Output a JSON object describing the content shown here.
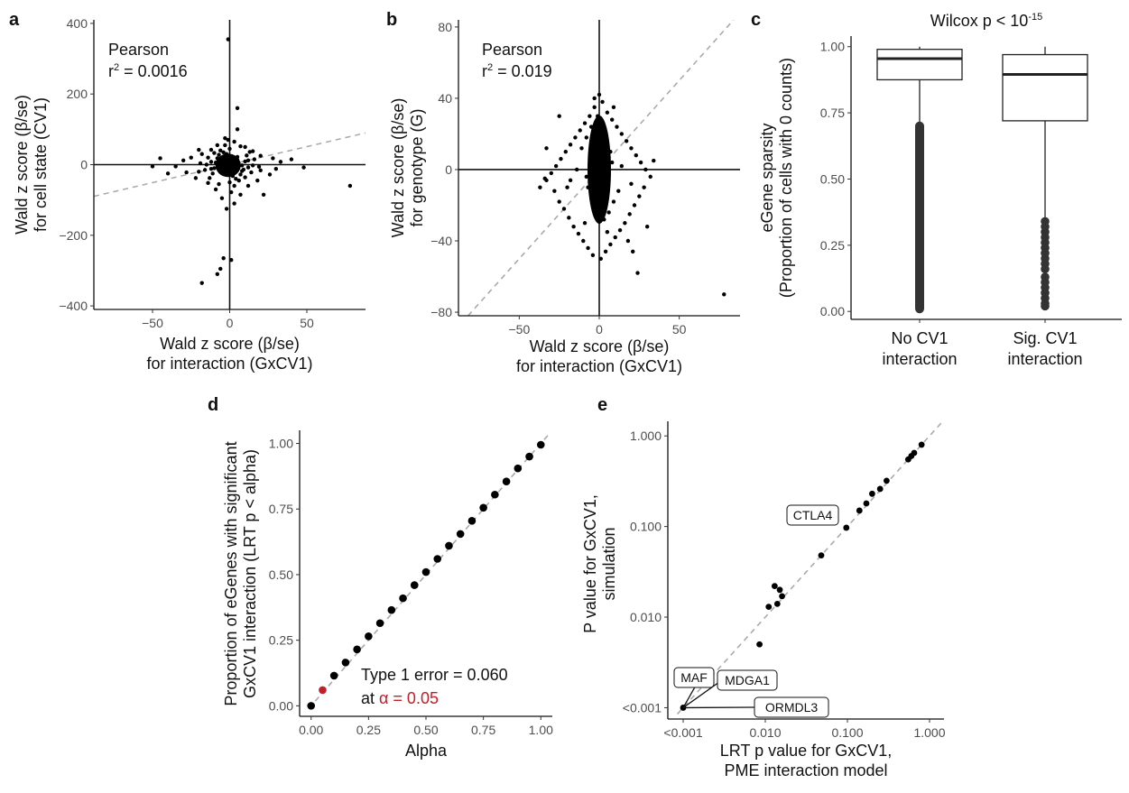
{
  "chart_data": [
    {
      "panel": "a",
      "type": "scatter",
      "xlabel": [
        "Wald z score (β/se)",
        "for interaction (GxCV1)"
      ],
      "ylabel": [
        "Wald z score (β/se)",
        "for cell state (CV1)"
      ],
      "xlim": [
        -88,
        88
      ],
      "ylim": [
        -410,
        410
      ],
      "xticks": [
        -50,
        0,
        50
      ],
      "xtick_labels": [
        "−50",
        "0",
        "50"
      ],
      "yticks": [
        -400,
        -200,
        0,
        200,
        400
      ],
      "ytick_labels": [
        "−400",
        "−200",
        "0",
        "200",
        "400"
      ],
      "annotation": [
        "Pearson",
        "r",
        "2",
        " = 0.0016"
      ],
      "fit_slope": 1.02,
      "points": [
        [
          -1,
          355
        ],
        [
          5,
          160
        ],
        [
          5,
          100
        ],
        [
          -3,
          75
        ],
        [
          3,
          65
        ],
        [
          -8,
          55
        ],
        [
          10,
          50
        ],
        [
          -12,
          42
        ],
        [
          15,
          38
        ],
        [
          -18,
          30
        ],
        [
          20,
          25
        ],
        [
          -25,
          20
        ],
        [
          28,
          18
        ],
        [
          -30,
          12
        ],
        [
          33,
          8
        ],
        [
          -35,
          -5
        ],
        [
          30,
          -12
        ],
        [
          -28,
          -22
        ],
        [
          26,
          -28
        ],
        [
          -22,
          -38
        ],
        [
          18,
          -45
        ],
        [
          -14,
          -52
        ],
        [
          12,
          -60
        ],
        [
          -9,
          -70
        ],
        [
          7,
          -85
        ],
        [
          -5,
          -95
        ],
        [
          3,
          -110
        ],
        [
          -2,
          -125
        ],
        [
          1,
          -270
        ],
        [
          -4,
          -265
        ],
        [
          -6,
          -295
        ],
        [
          -8,
          -310
        ],
        [
          -18,
          -335
        ],
        [
          78,
          -60
        ],
        [
          -50,
          -5
        ],
        [
          48,
          -8
        ],
        [
          -40,
          -25
        ],
        [
          40,
          15
        ],
        [
          -45,
          18
        ],
        [
          22,
          -85
        ],
        [
          -20,
          42
        ],
        [
          -2,
          5
        ],
        [
          1,
          -3
        ],
        [
          -3,
          -8
        ],
        [
          4,
          12
        ],
        [
          -5,
          2
        ],
        [
          6,
          -4
        ],
        [
          2,
          8
        ],
        [
          -1,
          -12
        ],
        [
          3,
          -18
        ],
        [
          -4,
          15
        ],
        [
          5,
          22
        ],
        [
          -6,
          -20
        ],
        [
          7,
          -28
        ],
        [
          -7,
          28
        ],
        [
          8,
          -2
        ],
        [
          -9,
          6
        ],
        [
          9,
          -14
        ],
        [
          -10,
          -10
        ],
        [
          10,
          9
        ],
        [
          0,
          0
        ],
        [
          -2,
          -2
        ],
        [
          2,
          3
        ],
        [
          -1,
          4
        ],
        [
          1,
          -6
        ],
        [
          -3,
          10
        ],
        [
          3,
          -9
        ],
        [
          -5,
          -14
        ],
        [
          5,
          14
        ],
        [
          0,
          18
        ],
        [
          0,
          -18
        ],
        [
          -8,
          18
        ],
        [
          8,
          -18
        ],
        [
          -12,
          -12
        ],
        [
          12,
          12
        ],
        [
          -12,
          8
        ],
        [
          12,
          -8
        ],
        [
          -15,
          0
        ],
        [
          15,
          -2
        ],
        [
          -2,
          30
        ],
        [
          2,
          -32
        ],
        [
          -4,
          35
        ],
        [
          4,
          -40
        ],
        [
          -6,
          40
        ],
        [
          6,
          -45
        ],
        [
          -11,
          -25
        ],
        [
          11,
          26
        ],
        [
          -14,
          20
        ],
        [
          14,
          -22
        ],
        [
          0,
          45
        ],
        [
          0,
          -50
        ],
        [
          -3,
          55
        ],
        [
          3,
          -60
        ],
        [
          -16,
          -15
        ],
        [
          16,
          15
        ],
        [
          -19,
          4
        ],
        [
          19,
          -6
        ],
        [
          -7,
          -55
        ],
        [
          7,
          52
        ],
        [
          -10,
          33
        ],
        [
          10,
          -36
        ],
        [
          -1,
          70
        ],
        [
          1,
          -78
        ],
        [
          -13,
          -38
        ],
        [
          13,
          36
        ],
        [
          -20,
          -20
        ],
        [
          20,
          -16
        ]
      ]
    },
    {
      "panel": "b",
      "type": "scatter",
      "xlabel": [
        "Wald z score (β/se)",
        "for interaction (GxCV1)"
      ],
      "ylabel": [
        "Wald z score (β/se)",
        "for genotype (G)"
      ],
      "xlim": [
        -88,
        88
      ],
      "ylim": [
        -82,
        84
      ],
      "xticks": [
        -50,
        0,
        50
      ],
      "xtick_labels": [
        "−50",
        "0",
        "50"
      ],
      "yticks": [
        -80,
        -40,
        0,
        40,
        80
      ],
      "ytick_labels": [
        "−80",
        "−40",
        "0",
        "40",
        "80"
      ],
      "annotation": [
        "Pearson",
        "r",
        "2",
        " = 0.019"
      ],
      "fit_slope": 1.0,
      "points": [
        [
          0,
          42
        ],
        [
          2,
          38
        ],
        [
          -3,
          35
        ],
        [
          5,
          32
        ],
        [
          -6,
          30
        ],
        [
          8,
          28
        ],
        [
          -9,
          26
        ],
        [
          11,
          24
        ],
        [
          -12,
          22
        ],
        [
          14,
          20
        ],
        [
          -15,
          18
        ],
        [
          17,
          16
        ],
        [
          -18,
          14
        ],
        [
          20,
          12
        ],
        [
          -21,
          10
        ],
        [
          23,
          8
        ],
        [
          -24,
          6
        ],
        [
          26,
          4
        ],
        [
          -27,
          2
        ],
        [
          29,
          0
        ],
        [
          -30,
          -2
        ],
        [
          32,
          -4
        ],
        [
          -33,
          -6
        ],
        [
          28,
          -10
        ],
        [
          -28,
          -12
        ],
        [
          25,
          -15
        ],
        [
          -25,
          -18
        ],
        [
          22,
          -20
        ],
        [
          -22,
          -22
        ],
        [
          19,
          -25
        ],
        [
          -19,
          -27
        ],
        [
          16,
          -30
        ],
        [
          -16,
          -32
        ],
        [
          13,
          -34
        ],
        [
          -13,
          -36
        ],
        [
          10,
          -38
        ],
        [
          -10,
          -40
        ],
        [
          7,
          -42
        ],
        [
          -7,
          -44
        ],
        [
          4,
          -46
        ],
        [
          -4,
          -48
        ],
        [
          1,
          -50
        ],
        [
          -1,
          30
        ],
        [
          3,
          -28
        ],
        [
          -5,
          24
        ],
        [
          6,
          -24
        ],
        [
          -8,
          18
        ],
        [
          9,
          -18
        ],
        [
          -11,
          12
        ],
        [
          12,
          -12
        ],
        [
          0,
          0
        ],
        [
          2,
          2
        ],
        [
          -2,
          -2
        ],
        [
          3,
          5
        ],
        [
          -3,
          -5
        ],
        [
          4,
          -1
        ],
        [
          -4,
          1
        ],
        [
          5,
          8
        ],
        [
          -5,
          -8
        ],
        [
          6,
          -3
        ],
        [
          -6,
          3
        ],
        [
          7,
          10
        ],
        [
          -7,
          -10
        ],
        [
          8,
          4
        ],
        [
          -8,
          -4
        ],
        [
          1,
          15
        ],
        [
          -1,
          -15
        ],
        [
          2,
          -12
        ],
        [
          -2,
          12
        ],
        [
          24,
          -58
        ],
        [
          34,
          5
        ],
        [
          21,
          -46
        ],
        [
          -37,
          -10
        ],
        [
          -34,
          -5
        ],
        [
          -33,
          12
        ],
        [
          -25,
          30
        ],
        [
          78,
          -70
        ],
        [
          18,
          -40
        ],
        [
          20,
          -8
        ],
        [
          -18,
          -6
        ],
        [
          -20,
          -10
        ],
        [
          30,
          -32
        ],
        [
          -14,
          0
        ],
        [
          14,
          2
        ],
        [
          9,
          35
        ],
        [
          -9,
          -30
        ],
        [
          0,
          -20
        ],
        [
          0,
          25
        ],
        [
          -3,
          40
        ],
        [
          5,
          -35
        ]
      ]
    },
    {
      "panel": "c",
      "type": "boxplot",
      "title_prefix": "Wilcox p < 10",
      "title_sup": "-15",
      "ylabel": [
        "eGene sparsity",
        "(Proportion of cells with 0 counts)"
      ],
      "categories": [
        [
          "No CV1",
          "interaction"
        ],
        [
          "Sig. CV1",
          "interaction"
        ]
      ],
      "ylim": [
        -0.03,
        1.04
      ],
      "yticks": [
        0,
        0.25,
        0.5,
        0.75,
        1.0
      ],
      "ytick_labels": [
        "0.00",
        "0.25",
        "0.50",
        "0.75",
        "1.00"
      ],
      "boxes": [
        {
          "q1": 0.875,
          "median": 0.955,
          "q3": 0.99,
          "whisker_low": 0.7,
          "whisker_high": 1.0,
          "outlier_range": [
            0.01,
            0.7
          ]
        },
        {
          "q1": 0.72,
          "median": 0.895,
          "q3": 0.97,
          "whisker_low": 0.35,
          "whisker_high": 1.0,
          "outliers": [
            0.34,
            0.32,
            0.3,
            0.28,
            0.26,
            0.24,
            0.22,
            0.2,
            0.18,
            0.16,
            0.13,
            0.11,
            0.09,
            0.07,
            0.05,
            0.03,
            0.02
          ]
        }
      ]
    },
    {
      "panel": "d",
      "type": "scatter",
      "xlabel": [
        "Alpha"
      ],
      "ylabel": [
        "Proportion of eGenes with significant",
        "GxCV1 interaction (LRT p < alpha)"
      ],
      "xlim": [
        -0.05,
        1.05
      ],
      "ylim": [
        -0.04,
        1.05
      ],
      "xticks": [
        0,
        0.25,
        0.5,
        0.75,
        1.0
      ],
      "xtick_labels": [
        "0.00",
        "0.25",
        "0.50",
        "0.75",
        "1.00"
      ],
      "yticks": [
        0,
        0.25,
        0.5,
        0.75,
        1.0
      ],
      "ytick_labels": [
        "0.00",
        "0.25",
        "0.50",
        "0.75",
        "1.00"
      ],
      "x": [
        0,
        0.05,
        0.1,
        0.15,
        0.2,
        0.25,
        0.3,
        0.35,
        0.4,
        0.45,
        0.5,
        0.55,
        0.6,
        0.65,
        0.7,
        0.75,
        0.8,
        0.85,
        0.9,
        0.95,
        1.0
      ],
      "y": [
        0,
        0.06,
        0.115,
        0.165,
        0.215,
        0.265,
        0.315,
        0.365,
        0.41,
        0.46,
        0.51,
        0.56,
        0.61,
        0.655,
        0.705,
        0.755,
        0.805,
        0.855,
        0.905,
        0.95,
        0.995
      ],
      "highlight_x": 0.05,
      "highlight_color": "#c0202a",
      "annotation": [
        "Type 1 error = 0.060",
        "at ",
        "α = 0.05"
      ]
    },
    {
      "panel": "e",
      "type": "scatter",
      "scale": "log",
      "xlabel": [
        "LRT p value for GxCV1,",
        "PME interaction model"
      ],
      "ylabel": [
        "P value for GxCV1,",
        "simulation"
      ],
      "xlim": [
        0.00065,
        1.5
      ],
      "ylim": [
        0.00075,
        1.45
      ],
      "xticks": [
        0.001,
        0.01,
        0.1,
        1.0
      ],
      "xtick_labels": [
        "<0.001",
        "0.010",
        "0.100",
        "1.000"
      ],
      "yticks": [
        0.001,
        0.01,
        0.1,
        1.0
      ],
      "ytick_labels": [
        "<0.001",
        "0.010",
        "0.100",
        "1.000"
      ],
      "points": [
        [
          0.001,
          0.001
        ],
        [
          0.0085,
          0.005
        ],
        [
          0.011,
          0.013
        ],
        [
          0.013,
          0.022
        ],
        [
          0.014,
          0.014
        ],
        [
          0.015,
          0.02
        ],
        [
          0.016,
          0.017
        ],
        [
          0.048,
          0.048
        ],
        [
          0.097,
          0.097
        ],
        [
          0.14,
          0.15
        ],
        [
          0.17,
          0.18
        ],
        [
          0.2,
          0.23
        ],
        [
          0.25,
          0.26
        ],
        [
          0.3,
          0.32
        ],
        [
          0.55,
          0.55
        ],
        [
          0.6,
          0.6
        ],
        [
          0.65,
          0.65
        ],
        [
          0.8,
          0.8
        ]
      ],
      "labels": [
        "CTLA4",
        "MAF",
        "MDGA1",
        "ORMDL3"
      ]
    }
  ]
}
